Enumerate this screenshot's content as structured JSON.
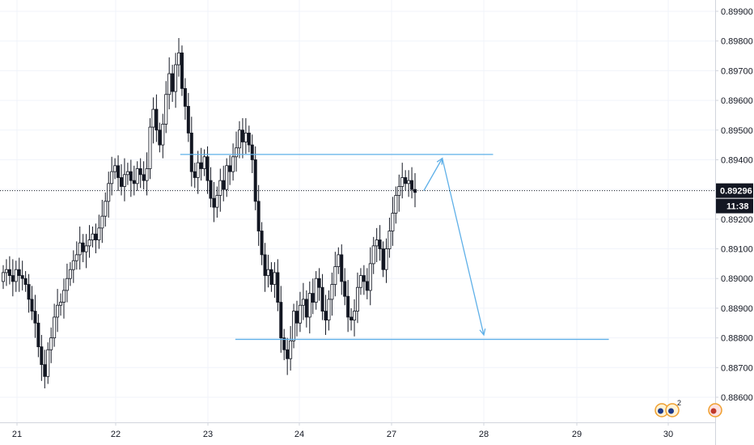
{
  "colors": {
    "background": "#ffffff",
    "grid": "#f0f3fa",
    "axis_line": "#d1d4dc",
    "candle": "#131722",
    "level_line": "#5fb0e8",
    "price_badge": "#131722",
    "badge_text": "#ffffff"
  },
  "axis": {
    "price_labels": [
      "0.89900",
      "0.89800",
      "0.89700",
      "0.89600",
      "0.89500",
      "0.89400",
      "0.89300",
      "0.89200",
      "0.89100",
      "0.89000",
      "0.88900",
      "0.88800",
      "0.88700",
      "0.88600"
    ],
    "date_labels": [
      "21",
      "22",
      "23",
      "24",
      "27",
      "28",
      "29",
      "30"
    ]
  },
  "last_price": {
    "value": "0.89296",
    "countdown": "11:38"
  },
  "events_badge": {
    "count": "2",
    "icon": "earnings-event-icon"
  },
  "chart_data": {
    "type": "candlestick",
    "title": "",
    "ylim": [
      0.8853,
      0.8993
    ],
    "x_ticks": [
      "21",
      "22",
      "23",
      "24",
      "27",
      "28",
      "29",
      "30"
    ],
    "y_ticks": [
      0.899,
      0.898,
      0.897,
      0.896,
      0.895,
      0.894,
      0.893,
      0.892,
      0.891,
      0.89,
      0.889,
      0.888,
      0.887,
      0.886
    ],
    "grid": true,
    "last_price": 0.89296,
    "levels": [
      {
        "price": 0.89418,
        "from_session": 22.7,
        "to_session": 28.1
      },
      {
        "price": 0.88795,
        "from_session": 23.3,
        "to_session": 29.35
      }
    ],
    "projection": [
      {
        "session": 27.35,
        "price": 0.89296
      },
      {
        "session": 27.55,
        "price": 0.89405
      },
      {
        "session": 28.0,
        "price": 0.8881
      }
    ],
    "candles_close": [
      0.8902,
      0.8903,
      0.8901,
      0.8899,
      0.8903,
      0.8901,
      0.89,
      0.8898,
      0.8893,
      0.8889,
      0.8885,
      0.8877,
      0.8871,
      0.8867,
      0.8876,
      0.888,
      0.8887,
      0.8891,
      0.8892,
      0.8896,
      0.89,
      0.8903,
      0.8906,
      0.8908,
      0.8912,
      0.8909,
      0.8911,
      0.8913,
      0.8915,
      0.8913,
      0.8917,
      0.8921,
      0.8926,
      0.8932,
      0.8936,
      0.8938,
      0.8934,
      0.8931,
      0.8935,
      0.8936,
      0.8933,
      0.8932,
      0.8937,
      0.8935,
      0.8933,
      0.8937,
      0.8951,
      0.8957,
      0.895,
      0.8945,
      0.8952,
      0.8962,
      0.8969,
      0.8963,
      0.8972,
      0.8976,
      0.8964,
      0.8958,
      0.8949,
      0.8936,
      0.8934,
      0.8939,
      0.8937,
      0.8941,
      0.8933,
      0.8927,
      0.8924,
      0.8928,
      0.8933,
      0.893,
      0.8938,
      0.8936,
      0.8941,
      0.8944,
      0.895,
      0.8946,
      0.8949,
      0.8945,
      0.894,
      0.8926,
      0.8916,
      0.8908,
      0.8901,
      0.8903,
      0.8898,
      0.8902,
      0.8892,
      0.888,
      0.8876,
      0.8873,
      0.8879,
      0.8889,
      0.8885,
      0.8891,
      0.8893,
      0.8887,
      0.8895,
      0.8892,
      0.89,
      0.8897,
      0.8889,
      0.8886,
      0.8893,
      0.8898,
      0.8904,
      0.8908,
      0.8899,
      0.8894,
      0.8887,
      0.8886,
      0.8889,
      0.8897,
      0.8901,
      0.8899,
      0.8896,
      0.8905,
      0.8911,
      0.8913,
      0.891,
      0.8903,
      0.891,
      0.8916,
      0.8922,
      0.8928,
      0.8931,
      0.8934,
      0.8932,
      0.8933,
      0.893,
      0.8929
    ]
  }
}
